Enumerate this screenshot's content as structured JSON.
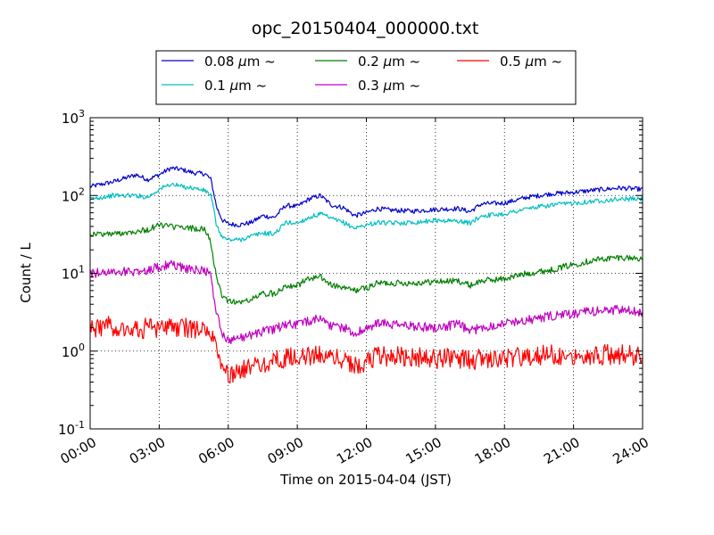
{
  "chart_data": {
    "type": "line",
    "title": "opc_20150404_000000.txt",
    "xlabel": "Time on 2015-04-04 (JST)",
    "ylabel": "Count / L",
    "yscale": "log",
    "ylim": [
      0.1,
      1000
    ],
    "xlim": [
      "00:00",
      "24:00"
    ],
    "grid": true,
    "legend_position": "top-center, above plot",
    "x_ticks": [
      "00:00",
      "03:00",
      "06:00",
      "09:00",
      "12:00",
      "15:00",
      "18:00",
      "21:00",
      "24:00"
    ],
    "y_ticks": [
      {
        "value": 0.1,
        "base": "10",
        "exp": "-1"
      },
      {
        "value": 1,
        "base": "10",
        "exp": "0"
      },
      {
        "value": 10,
        "base": "10",
        "exp": "1"
      },
      {
        "value": 100,
        "base": "10",
        "exp": "2"
      },
      {
        "value": 1000,
        "base": "10",
        "exp": "3"
      }
    ],
    "x": [
      "00:00",
      "01:00",
      "02:00",
      "02:30",
      "03:00",
      "03:30",
      "04:00",
      "04:30",
      "05:00",
      "05:15",
      "05:30",
      "05:45",
      "06:00",
      "06:30",
      "07:00",
      "07:30",
      "08:00",
      "08:30",
      "09:00",
      "09:30",
      "10:00",
      "10:30",
      "11:00",
      "11:30",
      "12:00",
      "12:30",
      "13:00",
      "14:00",
      "15:00",
      "16:00",
      "16:30",
      "17:00",
      "18:00",
      "19:00",
      "20:00",
      "21:00",
      "22:00",
      "23:00",
      "24:00"
    ],
    "series": [
      {
        "name": "0.08 μm ~",
        "legend_prefix": "0.08 ",
        "legend_suffix": "m ~",
        "color": "#0000cc",
        "values": [
          130,
          150,
          185,
          160,
          185,
          225,
          215,
          195,
          190,
          160,
          70,
          48,
          43,
          42,
          45,
          55,
          52,
          75,
          72,
          90,
          100,
          75,
          70,
          55,
          60,
          68,
          65,
          63,
          66,
          68,
          62,
          78,
          80,
          95,
          105,
          110,
          118,
          125,
          120
        ]
      },
      {
        "name": "0.1 μm ~",
        "legend_prefix": "0.1 ",
        "legend_suffix": "m ~",
        "color": "#00bfbf",
        "values": [
          90,
          100,
          100,
          95,
          120,
          140,
          130,
          125,
          115,
          100,
          40,
          29,
          27,
          27,
          30,
          33,
          32,
          45,
          44,
          52,
          58,
          50,
          45,
          38,
          42,
          45,
          44,
          45,
          48,
          47,
          44,
          55,
          58,
          68,
          75,
          80,
          85,
          90,
          90
        ]
      },
      {
        "name": "0.2 μm ~",
        "legend_prefix": "0.2 ",
        "legend_suffix": "m ~",
        "color": "#007f00",
        "values": [
          32,
          32,
          35,
          36,
          42,
          40,
          38,
          38,
          36,
          25,
          8,
          5,
          4.5,
          4.2,
          4.6,
          5.5,
          5.5,
          7,
          7,
          8.5,
          9,
          7,
          6.5,
          6,
          6.5,
          7.5,
          7.5,
          7.5,
          7.8,
          8,
          7,
          8,
          8.5,
          10,
          11,
          13,
          15,
          16,
          15.5
        ]
      },
      {
        "name": "0.3 μm ~",
        "legend_prefix": "0.3 ",
        "legend_suffix": "m ~",
        "color": "#bf00bf",
        "values": [
          10,
          10.5,
          10.5,
          11,
          12,
          13,
          12,
          11,
          11,
          9,
          3,
          1.6,
          1.4,
          1.5,
          1.6,
          1.8,
          1.9,
          2.2,
          2.2,
          2.4,
          2.7,
          2.1,
          2.0,
          1.7,
          1.9,
          2.3,
          2.2,
          2.1,
          2.0,
          2.2,
          1.8,
          2.0,
          2.3,
          2.5,
          2.8,
          3.0,
          3.3,
          3.4,
          3.1
        ]
      },
      {
        "name": "0.5 μm ~",
        "legend_prefix": "0.5 ",
        "legend_suffix": "m ~",
        "color": "#ff0000",
        "values": [
          2.0,
          2.1,
          1.9,
          2.0,
          1.8,
          2.1,
          2.0,
          1.9,
          1.9,
          1.7,
          0.9,
          0.6,
          0.5,
          0.55,
          0.6,
          0.7,
          0.75,
          0.8,
          0.85,
          0.85,
          0.9,
          0.85,
          0.8,
          0.65,
          0.7,
          0.9,
          0.85,
          0.85,
          0.8,
          0.8,
          0.75,
          0.8,
          0.8,
          0.85,
          0.9,
          0.9,
          0.9,
          0.9,
          0.85
        ]
      }
    ]
  }
}
